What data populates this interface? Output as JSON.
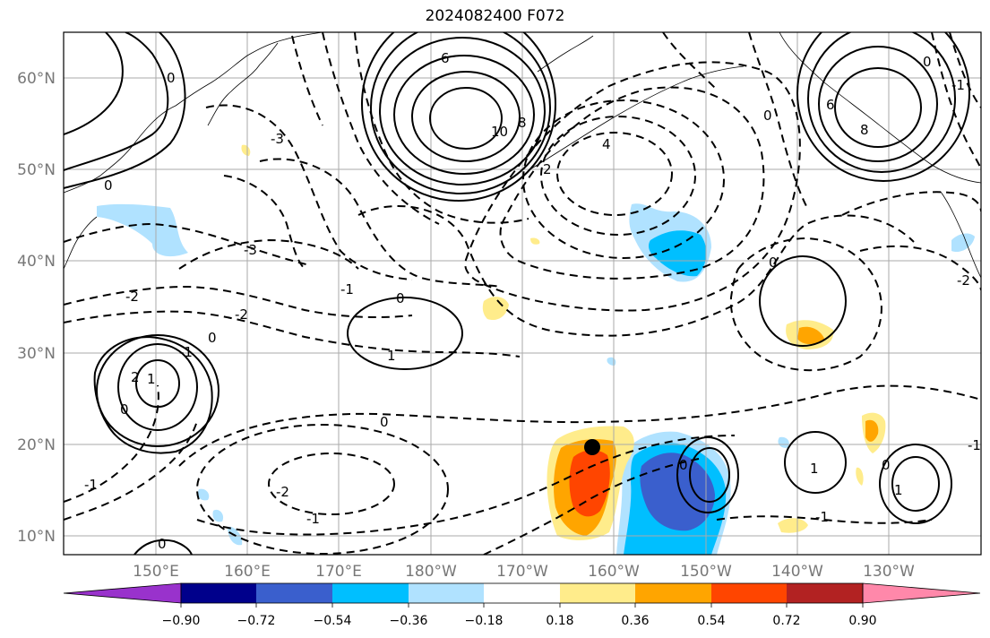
{
  "title": "2024082400 F072",
  "lat_labels": [
    "60°N",
    "50°N",
    "40°N",
    "30°N",
    "20°N",
    "10°N"
  ],
  "lon_labels": [
    "150°E",
    "160°E",
    "170°E",
    "180°W",
    "170°W",
    "160°W",
    "150°W",
    "140°W",
    "130°W"
  ],
  "contour_labels": [
    "0",
    "-1",
    "-2",
    "-3",
    "0",
    "6",
    "8",
    "10",
    "4",
    "2",
    "0",
    "6",
    "8",
    "0",
    "-1",
    "-2",
    "0",
    "1",
    "-3",
    "0",
    "-2",
    "-1",
    "0",
    "-1",
    "2",
    "1",
    "0",
    "-1",
    "0",
    "1",
    "1",
    "0",
    "-2",
    "-1",
    "0",
    "-1",
    "0"
  ],
  "colorbar": {
    "ticks": [
      "−0.90",
      "−0.72",
      "−0.54",
      "−0.36",
      "−0.18",
      "0.18",
      "0.36",
      "0.54",
      "0.72",
      "0.90"
    ],
    "colors": [
      "#9932cc",
      "#00008b",
      "#3a5fcd",
      "#00bfff",
      "#b0e2ff",
      "#ffffff",
      "#ffec8b",
      "#ffa500",
      "#ff4500",
      "#b22222",
      "#ff88aa"
    ]
  },
  "colors": {
    "shade_neg_light": "#b0e2ff",
    "shade_neg_mid": "#00bfff",
    "shade_neg_strong": "#3a5fcd",
    "shade_pos_light": "#ffec8b",
    "shade_pos_mid": "#ffa500",
    "shade_pos_strong": "#ff4500",
    "grid": "#aaaaaa",
    "contour": "#000000"
  },
  "marker": {
    "name": "storm-center",
    "lon": -162.5,
    "lat": 19.7
  }
}
